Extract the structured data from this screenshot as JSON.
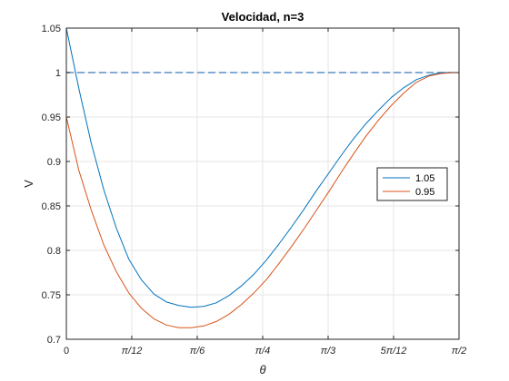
{
  "chart_data": {
    "type": "line",
    "title": "Velocidad, n=3",
    "xlabel": "θ",
    "ylabel": "V",
    "xlim": [
      0,
      1.5708
    ],
    "ylim": [
      0.7,
      1.05
    ],
    "grid": true,
    "legend_position": "right",
    "x_ticks": [
      {
        "value": 0,
        "label": "0"
      },
      {
        "value": 0.2618,
        "label": "π/12"
      },
      {
        "value": 0.5236,
        "label": "π/6"
      },
      {
        "value": 0.7854,
        "label": "π/4"
      },
      {
        "value": 1.0472,
        "label": "π/3"
      },
      {
        "value": 1.309,
        "label": "5π/12"
      },
      {
        "value": 1.5708,
        "label": "π/2"
      }
    ],
    "y_ticks": [
      {
        "value": 0.7,
        "label": "0.7"
      },
      {
        "value": 0.75,
        "label": "0.75"
      },
      {
        "value": 0.8,
        "label": "0.8"
      },
      {
        "value": 0.85,
        "label": "0.85"
      },
      {
        "value": 0.9,
        "label": "0.9"
      },
      {
        "value": 0.95,
        "label": "0.95"
      },
      {
        "value": 1,
        "label": "1"
      },
      {
        "value": 1.05,
        "label": "1.05"
      }
    ],
    "series": [
      {
        "name": "1.05",
        "color": "#0072BD",
        "x": [
          0,
          0.05,
          0.1,
          0.15,
          0.2,
          0.25,
          0.3,
          0.35,
          0.4,
          0.45,
          0.5,
          0.55,
          0.6,
          0.65,
          0.7,
          0.75,
          0.8,
          0.85,
          0.9,
          0.95,
          1.0,
          1.05,
          1.1,
          1.15,
          1.2,
          1.25,
          1.3,
          1.35,
          1.4,
          1.45,
          1.5,
          1.55,
          1.5708
        ],
        "y": [
          1.05,
          0.982,
          0.92,
          0.868,
          0.825,
          0.79,
          0.767,
          0.751,
          0.742,
          0.738,
          0.736,
          0.737,
          0.741,
          0.749,
          0.76,
          0.773,
          0.789,
          0.807,
          0.826,
          0.846,
          0.867,
          0.887,
          0.907,
          0.926,
          0.943,
          0.958,
          0.972,
          0.983,
          0.992,
          0.997,
          1.0,
          1.0,
          1.0
        ]
      },
      {
        "name": "0.95",
        "color": "#D95319",
        "x": [
          0,
          0.05,
          0.1,
          0.15,
          0.2,
          0.25,
          0.3,
          0.35,
          0.4,
          0.45,
          0.5,
          0.55,
          0.6,
          0.65,
          0.7,
          0.75,
          0.8,
          0.85,
          0.9,
          0.95,
          1.0,
          1.05,
          1.1,
          1.15,
          1.2,
          1.25,
          1.3,
          1.35,
          1.4,
          1.45,
          1.5,
          1.55,
          1.5708
        ],
        "y": [
          0.95,
          0.89,
          0.845,
          0.806,
          0.776,
          0.752,
          0.735,
          0.723,
          0.716,
          0.713,
          0.713,
          0.715,
          0.72,
          0.728,
          0.739,
          0.752,
          0.767,
          0.785,
          0.804,
          0.824,
          0.845,
          0.866,
          0.888,
          0.909,
          0.929,
          0.947,
          0.963,
          0.977,
          0.989,
          0.996,
          0.999,
          1.0,
          1.0
        ]
      }
    ],
    "reference_line": {
      "y": 1,
      "color": "#5B8FC9",
      "style": "dashed"
    }
  }
}
